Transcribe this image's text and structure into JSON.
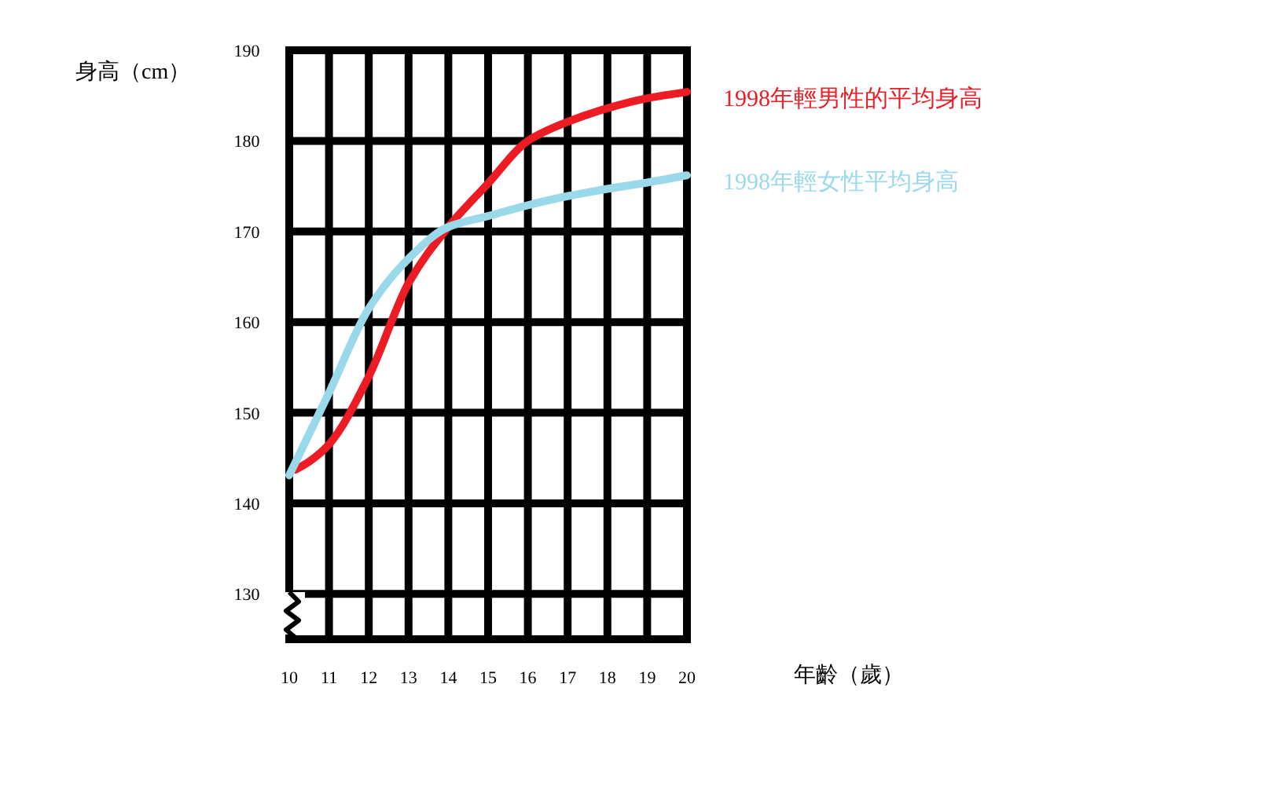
{
  "chart_data": {
    "type": "line",
    "xlabel": "年齡（歲）",
    "ylabel": "身高（cm）",
    "xlim": [
      10,
      20
    ],
    "xticks": [
      10,
      11,
      12,
      13,
      14,
      15,
      16,
      17,
      18,
      19,
      20
    ],
    "ylim": [
      125,
      190
    ],
    "yticks": [
      130,
      140,
      150,
      160,
      170,
      180,
      190
    ],
    "grid": true,
    "series": [
      {
        "name": "1998年輕男性的平均身高",
        "color": "#ed1c24",
        "x": [
          10.15,
          10.5,
          11,
          12,
          13,
          14,
          15,
          16,
          17,
          18,
          19,
          20
        ],
        "values": [
          143.7,
          144.6,
          146.5,
          154,
          164.3,
          170.5,
          175.3,
          180,
          182.1,
          183.6,
          184.7,
          185.4
        ]
      },
      {
        "name": "1998年輕女性平均身高",
        "color": "#99d9ea",
        "x": [
          10,
          11,
          12,
          13,
          14,
          15,
          16,
          17,
          18,
          19,
          20
        ],
        "values": [
          143.1,
          152.2,
          161.5,
          167,
          170.5,
          171.7,
          172.9,
          173.9,
          174.7,
          175.4,
          176.2
        ]
      }
    ]
  }
}
